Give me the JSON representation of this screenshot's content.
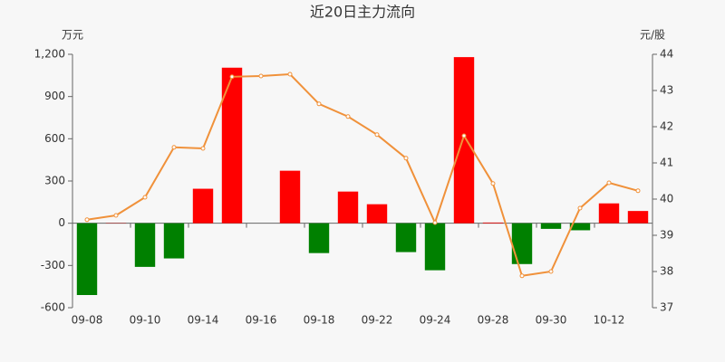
{
  "chart_data": {
    "type": "bar-line",
    "title": "近20日主力流向",
    "y_unit": "万元",
    "y2_unit": "元/股",
    "categories": [
      "09-08",
      null,
      "09-10",
      null,
      "09-14",
      null,
      "09-16",
      null,
      "09-18",
      null,
      "09-22",
      null,
      "09-24",
      null,
      "09-28",
      null,
      "09-30",
      null,
      "10-12",
      null
    ],
    "bars": {
      "values": [
        -510,
        2,
        -310,
        -250,
        245,
        1105,
        0,
        373,
        -212,
        225,
        135,
        -205,
        -334,
        1180,
        5,
        -290,
        -40,
        -50,
        141,
        87
      ],
      "up_color": "#ff0000",
      "down_color": "#008000"
    },
    "line": {
      "values": [
        39.43,
        39.55,
        40.05,
        41.43,
        41.4,
        43.38,
        43.4,
        43.45,
        42.63,
        42.28,
        41.78,
        41.13,
        39.35,
        41.75,
        40.43,
        37.88,
        38.0,
        39.75,
        40.45,
        40.23
      ],
      "color": "#f0913a",
      "axis": "y2"
    },
    "ylim": [
      -600,
      1200
    ],
    "yticks": [
      -600,
      -300,
      0,
      300,
      600,
      900,
      {
        "value": 1200,
        "label": "1,200"
      }
    ],
    "y2lim": [
      37,
      44
    ],
    "y2ticks": [
      37,
      38,
      39,
      40,
      41,
      42,
      43,
      44
    ],
    "grid": false
  }
}
